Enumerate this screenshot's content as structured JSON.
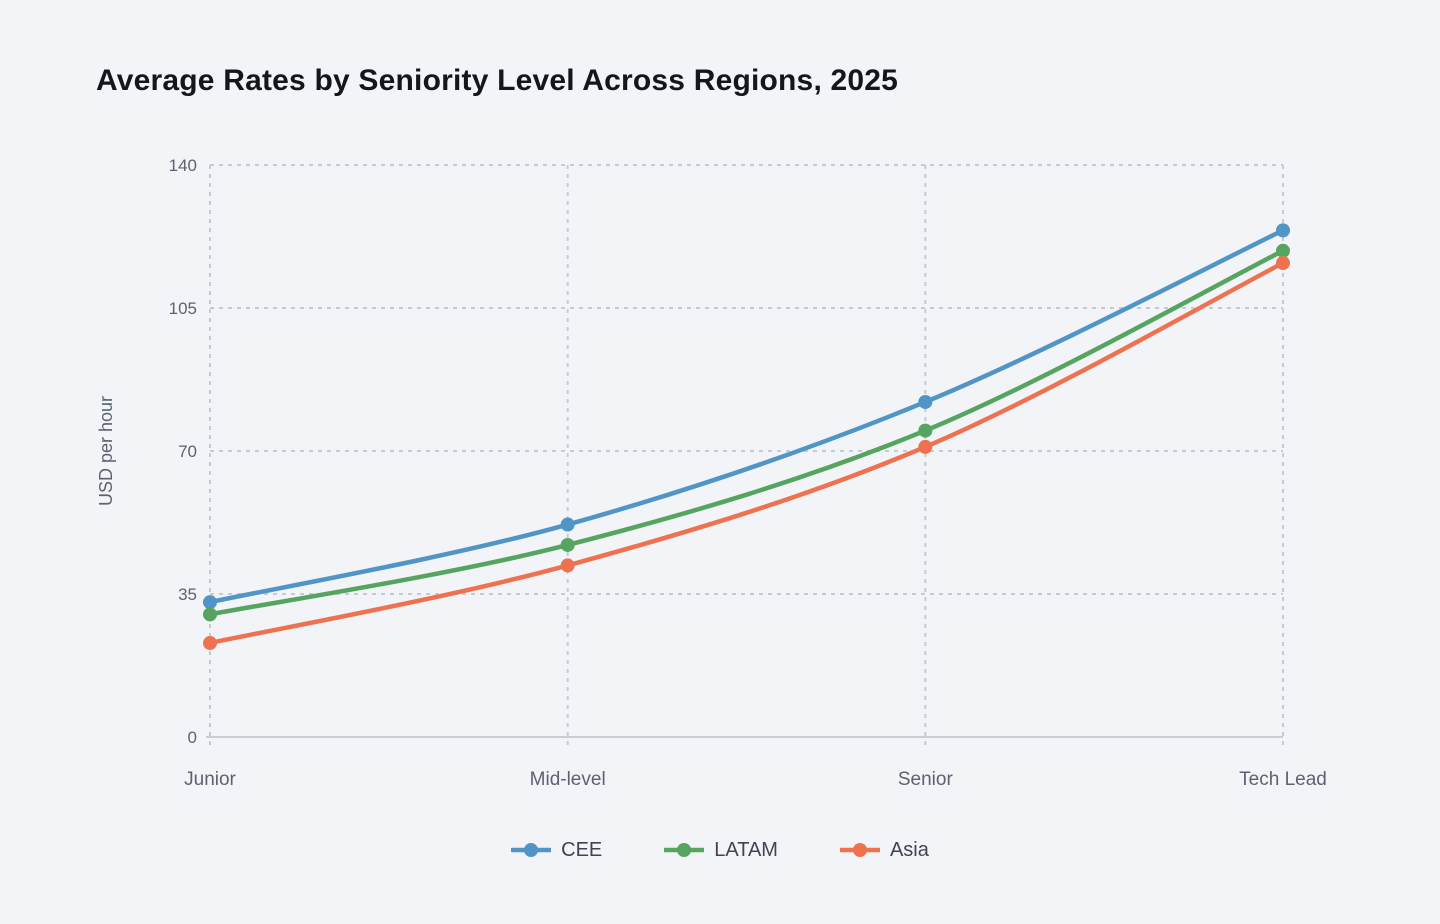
{
  "chart_data": {
    "type": "line",
    "title": "Average Rates by Seniority Level Across Regions, 2025",
    "categories": [
      "Junior",
      "Mid-level",
      "Senior",
      "Tech Lead"
    ],
    "series": [
      {
        "name": "CEE",
        "color": "#5194c6",
        "values": [
          33,
          52,
          82,
          124
        ]
      },
      {
        "name": "LATAM",
        "color": "#55a45f",
        "values": [
          30,
          47,
          75,
          119
        ]
      },
      {
        "name": "Asia",
        "color": "#ee7150",
        "values": [
          23,
          42,
          71,
          116
        ]
      }
    ],
    "xlabel": "",
    "ylabel": "USD per hour",
    "ylim": [
      0,
      140
    ],
    "yticks": [
      0,
      35,
      70,
      105,
      140
    ],
    "grid": true,
    "grid_style": "dashed",
    "line_smoothing": true,
    "marker": "circle",
    "legend_position": "bottom"
  },
  "colors": {
    "background": "#f2f4f8",
    "gridline": "#c5cbd5",
    "axis_line": "#c8cdd6",
    "tick_text": "#5b6270",
    "title_text": "#14161b",
    "legend_text": "#3f4450"
  }
}
